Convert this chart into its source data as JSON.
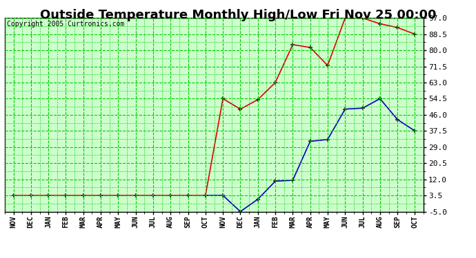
{
  "title": "Outside Temperature Monthly High/Low Fri Nov 25 00:00",
  "copyright": "Copyright 2005 Curtronics.com",
  "x_labels": [
    "NOV",
    "DEC",
    "JAN",
    "FEB",
    "MAR",
    "APR",
    "MAY",
    "JUN",
    "JUL",
    "AUG",
    "SEP",
    "OCT",
    "NOV",
    "DEC",
    "JAN",
    "FEB",
    "MAR",
    "APR",
    "MAY",
    "JUN",
    "JUL",
    "AUG",
    "SEP",
    "OCT"
  ],
  "yticks": [
    -5.0,
    3.5,
    12.0,
    20.5,
    29.0,
    37.5,
    46.0,
    54.5,
    63.0,
    71.5,
    80.0,
    88.5,
    97.0
  ],
  "high_values": [
    3.5,
    3.5,
    3.5,
    3.5,
    3.5,
    3.5,
    3.5,
    3.5,
    3.5,
    3.5,
    3.5,
    3.5,
    54.5,
    49.0,
    54.0,
    63.0,
    83.0,
    81.5,
    72.0,
    97.0,
    97.0,
    94.0,
    92.0,
    88.5
  ],
  "low_values": [
    null,
    null,
    null,
    null,
    null,
    null,
    null,
    null,
    null,
    null,
    null,
    3.5,
    3.5,
    -5.0,
    1.5,
    11.0,
    11.5,
    32.0,
    33.0,
    49.0,
    49.5,
    54.5,
    43.5,
    37.5
  ],
  "high_color": "#dd0000",
  "low_color": "#0000bb",
  "bg_color": "#ccffcc",
  "grid_color": "#00cc00",
  "title_fontsize": 13,
  "copyright_fontsize": 7,
  "ylabel_fontsize": 8,
  "xlabel_fontsize": 7,
  "ylim": [
    -5.0,
    97.0
  ]
}
